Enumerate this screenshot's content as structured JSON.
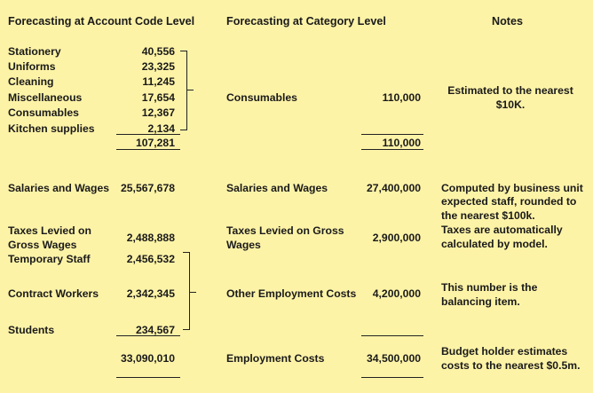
{
  "headers": {
    "account": "Forecasting at Account Code Level",
    "category": "Forecasting at Category Level",
    "notes": "Notes"
  },
  "consumables": {
    "items": [
      {
        "label": "Stationery",
        "value": "40,556"
      },
      {
        "label": "Uniforms",
        "value": "23,325"
      },
      {
        "label": "Cleaning",
        "value": "11,245"
      },
      {
        "label": "Miscellaneous",
        "value": "17,654"
      },
      {
        "label": "Consumables",
        "value": "12,367"
      },
      {
        "label": "Kitchen supplies",
        "value": "2,134"
      }
    ],
    "account_total": "107,281",
    "category_label": "Consumables",
    "category_value": "110,000",
    "category_total": "110,000",
    "note": [
      "Estimated to the nearest",
      "$10K."
    ]
  },
  "salaries": {
    "label": "Salaries and Wages",
    "value": "25,567,678",
    "category_label": "Salaries and Wages",
    "category_value": "27,400,000",
    "note": [
      "Computed by business unit",
      "expected staff, rounded to",
      "the nearest $100k."
    ]
  },
  "taxes": {
    "label": [
      "Taxes Levied on",
      "Gross Wages"
    ],
    "value": "2,488,888",
    "category_label": [
      "Taxes Levied on Gross",
      "Wages"
    ],
    "category_value": "2,900,000",
    "note": [
      "Taxes are automatically",
      "calculated by model."
    ]
  },
  "other_employment": {
    "items": [
      {
        "label": "Temporary Staff",
        "value": "2,456,532"
      },
      {
        "label": "Contract Workers",
        "value": "2,342,345"
      },
      {
        "label": "Students",
        "value": "234,567"
      }
    ],
    "category_label": "Other Employment Costs",
    "category_value": "4,200,000",
    "note": [
      "This number is the",
      "balancing item."
    ]
  },
  "employment": {
    "account_total": "33,090,010",
    "category_label": "Employment Costs",
    "category_value": "34,500,000",
    "note": [
      "Budget holder estimates",
      "costs to the nearest $0.5m."
    ]
  }
}
